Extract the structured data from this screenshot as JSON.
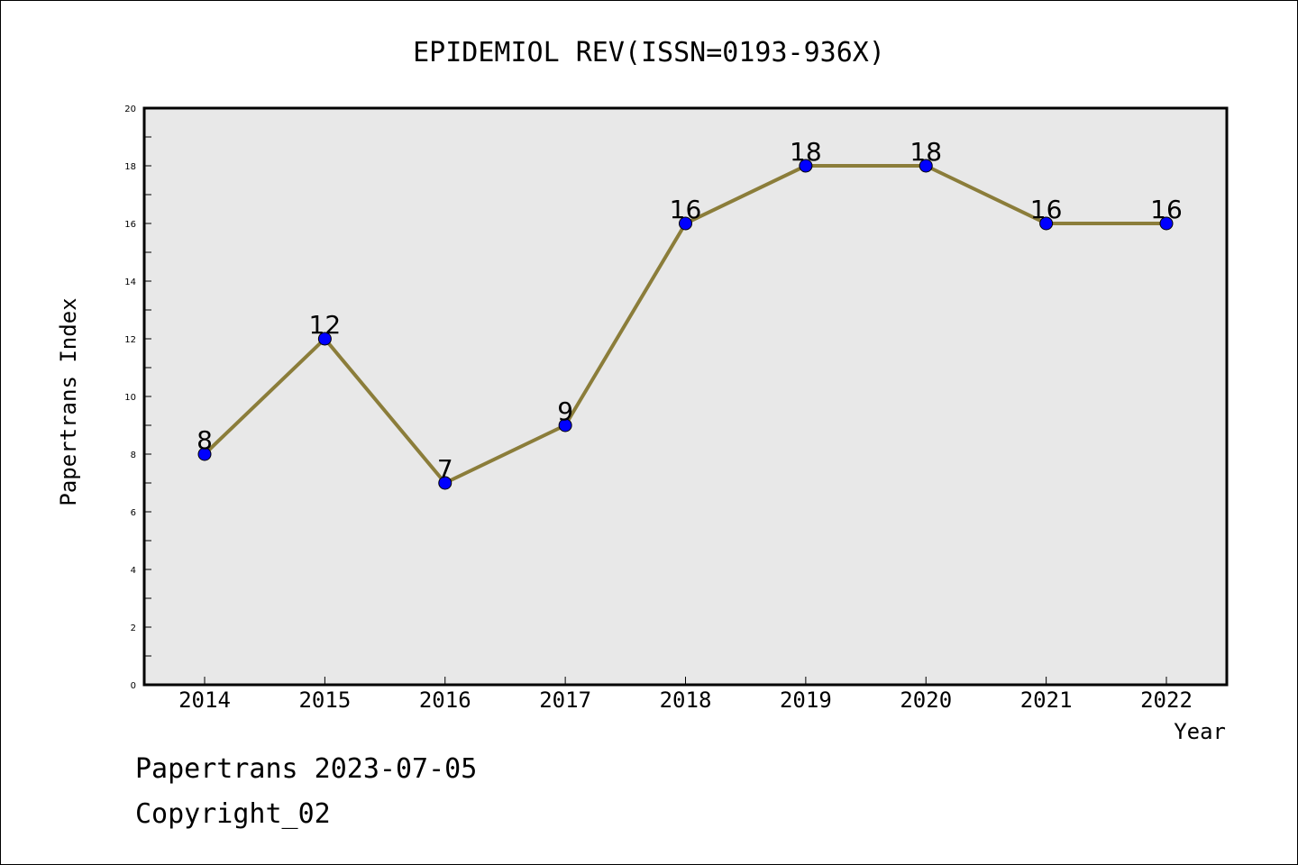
{
  "chart_data": {
    "type": "line",
    "title": "EPIDEMIOL REV(ISSN=0193-936X)",
    "xlabel": "Year",
    "ylabel": "Papertrans Index",
    "categories": [
      "2014",
      "2015",
      "2016",
      "2017",
      "2018",
      "2019",
      "2020",
      "2021",
      "2022"
    ],
    "values": [
      8,
      12,
      7,
      9,
      16,
      18,
      18,
      16,
      16
    ],
    "ylim": [
      0,
      20
    ],
    "yticks": [
      "0",
      "2",
      "4",
      "6",
      "8",
      "10",
      "12",
      "14",
      "16",
      "18",
      "20"
    ],
    "grid": false,
    "legend": "none",
    "data_labels": true,
    "line_color": "#8b7d3a",
    "marker_color": "#0000ff",
    "plot_background": "#e8e8e8"
  },
  "footer": {
    "date_line": "Papertrans 2023-07-05",
    "copyright_line": "Copyright_02"
  }
}
